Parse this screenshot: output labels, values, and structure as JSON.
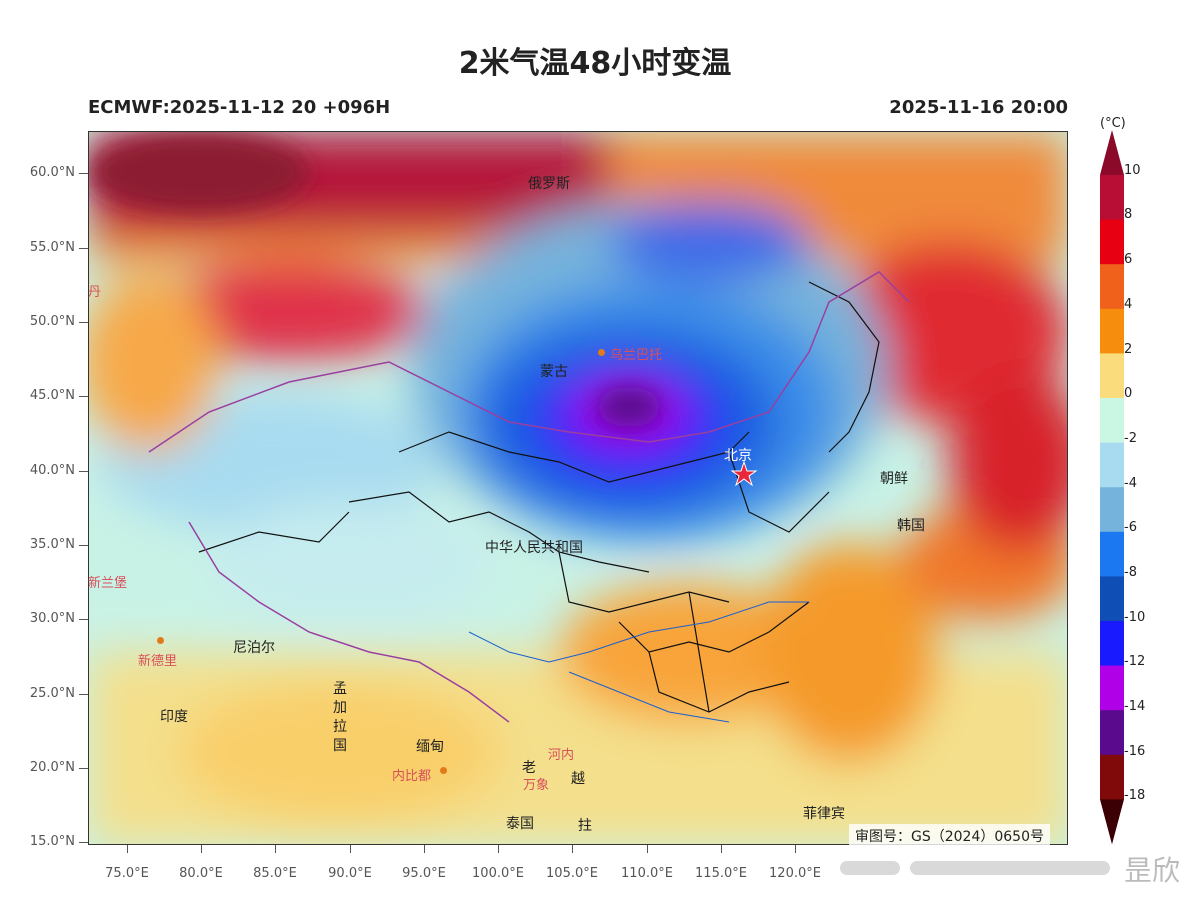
{
  "header": {
    "title": "2米气温48小时变温",
    "model_run": "ECMWF:2025-11-12 20 +096H",
    "valid_time": "2025-11-16 20:00"
  },
  "axes": {
    "lat_labels": [
      "60.0°N",
      "55.0°N",
      "50.0°N",
      "45.0°N",
      "40.0°N",
      "35.0°N",
      "30.0°N",
      "25.0°N",
      "20.0°N",
      "15.0°N"
    ],
    "lon_labels": [
      "75.0°E",
      "80.0°E",
      "85.0°E",
      "90.0°E",
      "95.0°E",
      "100.0°E",
      "105.0°E",
      "110.0°E",
      "115.0°E",
      "120.0°E"
    ]
  },
  "colorbar": {
    "unit": "(°C)",
    "labels": [
      "10",
      "8",
      "6",
      "4",
      "2",
      "0",
      "-2",
      "-4",
      "-6",
      "-8",
      "-10",
      "-12",
      "-14",
      "-16",
      "-18"
    ],
    "colors": [
      "#b80d35",
      "#e60012",
      "#f0621c",
      "#f78d0c",
      "#fbdc7d",
      "#c9f7e4",
      "#a8dbf0",
      "#76b3dc",
      "#1b78f0",
      "#0f4fb5",
      "#1a1aff",
      "#b000e8",
      "#5a0a8c",
      "#800a0a"
    ],
    "top_color": "#8b0a2a",
    "bottom_color": "#3a0003"
  },
  "places": {
    "russia": "俄罗斯",
    "mongolia": "蒙古",
    "ulaanbaatar": "乌兰巴托",
    "beijing": "北京",
    "north_korea": "朝鲜",
    "south_korea": "韩国",
    "china": "中华人民共和国",
    "nepal": "尼泊尔",
    "new_delhi": "新德里",
    "india": "印度",
    "bangladesh": "孟加拉国",
    "myanmar": "缅甸",
    "naypyidaw": "内比都",
    "laos": "老",
    "vientiane": "万象",
    "hanoi": "河内",
    "vietnam": "越",
    "thailand": "泰国",
    "cambodia": "拄",
    "philippines": "菲律宾",
    "kazakhstan_partial": "丹",
    "islamabad_partial": "新兰堡"
  },
  "footer": {
    "approval_number": "审图号：GS（2024）0650号",
    "watermark": "昰欣"
  }
}
